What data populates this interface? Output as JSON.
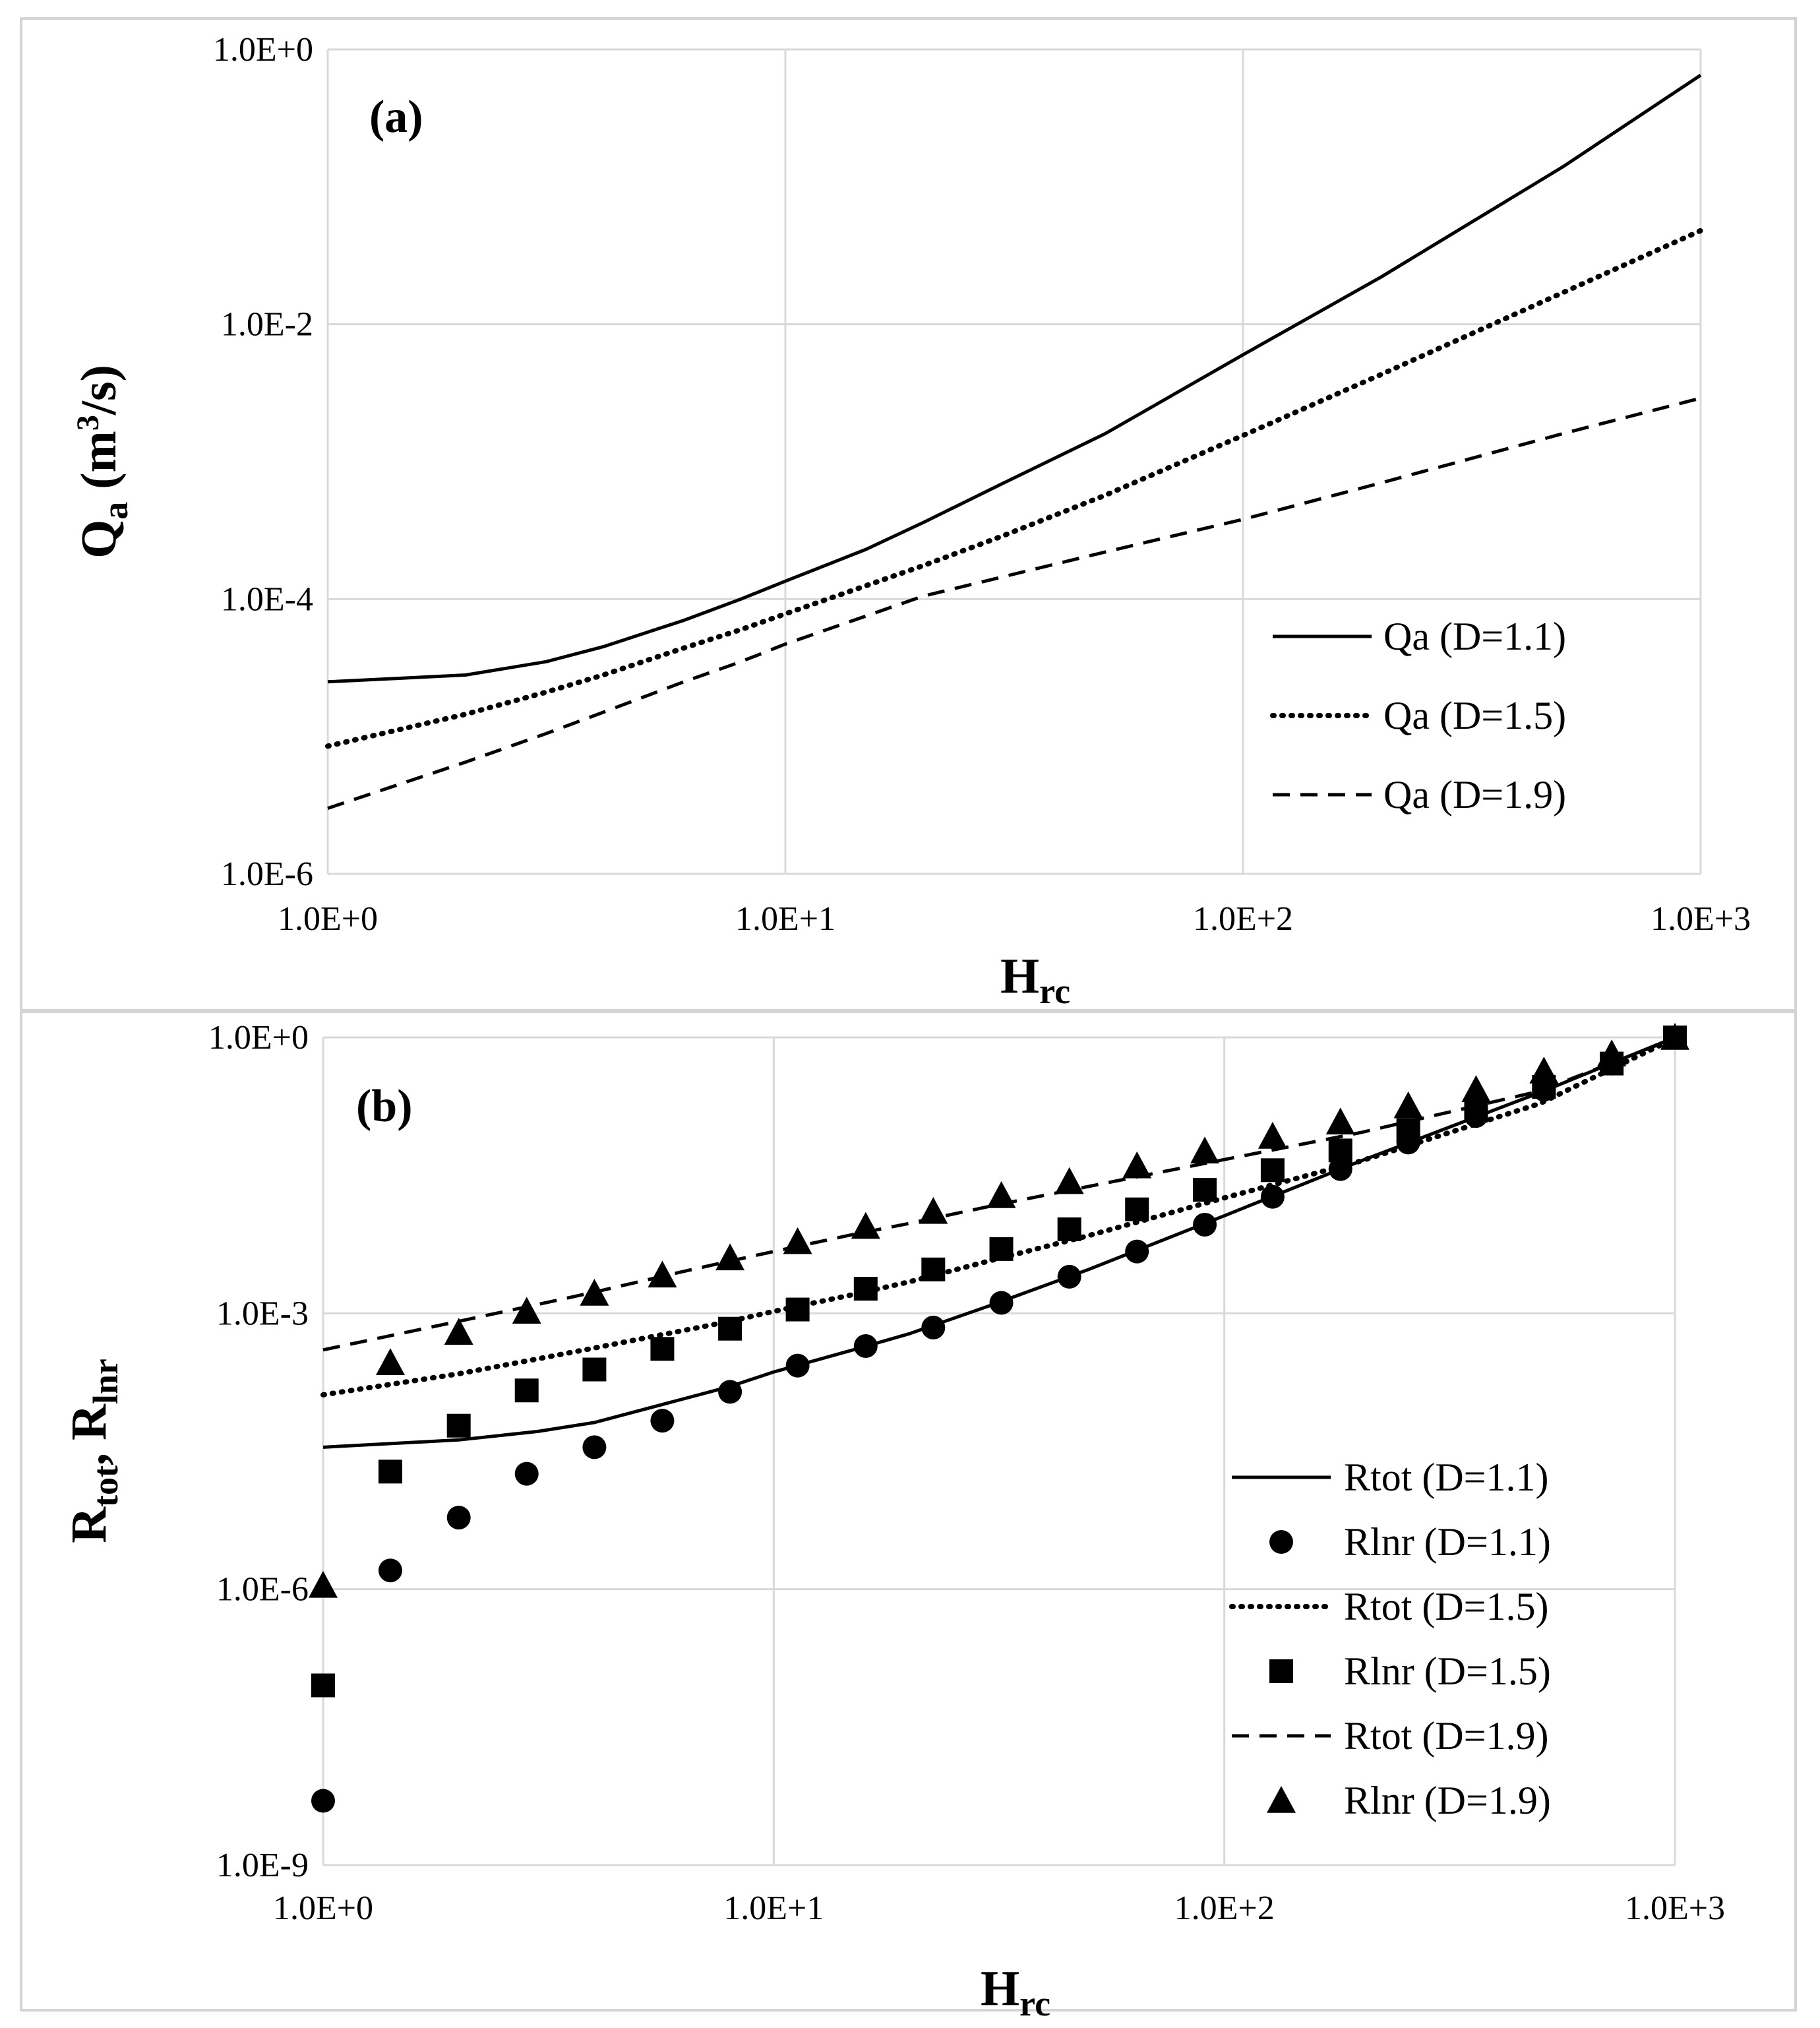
{
  "chart_data": [
    {
      "type": "line",
      "panel_label": "(a)",
      "xscale": "log",
      "yscale": "log",
      "xlim": [
        1,
        1000
      ],
      "ylim": [
        1e-06,
        1
      ],
      "x_ticks": [
        {
          "value": 1,
          "label": "1.0E+0"
        },
        {
          "value": 10,
          "label": "1.0E+1"
        },
        {
          "value": 100,
          "label": "1.0E+2"
        },
        {
          "value": 1000,
          "label": "1.0E+3"
        }
      ],
      "y_ticks": [
        {
          "value": 1e-06,
          "label": "1.0E-6"
        },
        {
          "value": 0.0001,
          "label": "1.0E-4"
        },
        {
          "value": 0.01,
          "label": "1.0E-2"
        },
        {
          "value": 1,
          "label": "1.0E+0"
        }
      ],
      "xlabel": {
        "main": "H",
        "sub": "rc"
      },
      "ylabel": {
        "main": "Q",
        "sub": "a",
        "rest": " (m",
        "sup": "3",
        "end": "/s)"
      },
      "grid": true,
      "legend_position": "bottom-right",
      "series": [
        {
          "name": "Qa (D=1.1)",
          "style": "solid",
          "x": [
            1,
            2,
            3,
            4,
            6,
            8,
            10,
            15,
            20,
            30,
            50,
            100,
            200,
            500,
            1000
          ],
          "y": [
            2.5e-05,
            2.8e-05,
            3.5e-05,
            4.5e-05,
            7e-05,
            0.0001,
            0.000135,
            0.00023,
            0.00036,
            0.0007,
            0.0016,
            0.006,
            0.022,
            0.14,
            0.65
          ]
        },
        {
          "name": "Qa (D=1.5)",
          "style": "dotted",
          "x": [
            1,
            2,
            3,
            4,
            6,
            8,
            10,
            15,
            20,
            30,
            50,
            100,
            200,
            500,
            1000
          ],
          "y": [
            8.5e-06,
            1.45e-05,
            2.1e-05,
            2.8e-05,
            4.4e-05,
            6e-05,
            7.8e-05,
            0.000125,
            0.000175,
            0.00029,
            0.00057,
            0.00155,
            0.0043,
            0.017,
            0.048
          ]
        },
        {
          "name": "Qa (D=1.9)",
          "style": "dashed",
          "x": [
            1,
            2,
            3,
            4,
            6,
            8,
            10,
            20,
            50,
            100,
            200,
            500,
            1000
          ],
          "y": [
            3e-06,
            6.5e-06,
            1.05e-05,
            1.5e-05,
            2.5e-05,
            3.5e-05,
            4.7e-05,
            0.000105,
            0.00022,
            0.00038,
            0.0007,
            0.0016,
            0.0029
          ]
        }
      ]
    },
    {
      "type": "scatter",
      "panel_label": "(b)",
      "xscale": "log",
      "yscale": "log",
      "xlim": [
        1,
        1000
      ],
      "ylim": [
        1e-09,
        1
      ],
      "x_ticks": [
        {
          "value": 1,
          "label": "1.0E+0"
        },
        {
          "value": 10,
          "label": "1.0E+1"
        },
        {
          "value": 100,
          "label": "1.0E+2"
        },
        {
          "value": 1000,
          "label": "1.0E+3"
        }
      ],
      "y_ticks": [
        {
          "value": 1e-09,
          "label": "1.0E-9"
        },
        {
          "value": 1e-06,
          "label": "1.0E-6"
        },
        {
          "value": 0.001,
          "label": "1.0E-3"
        },
        {
          "value": 1,
          "label": "1.0E+0"
        }
      ],
      "xlabel": {
        "main": "H",
        "sub": "rc"
      },
      "ylabel": {
        "main": "R",
        "sub": "tot",
        "rest": ", R",
        "sub2": "lnr"
      },
      "grid": true,
      "legend_position": "bottom-right",
      "series": [
        {
          "name": "Rtot (D=1.1)",
          "style": "solid",
          "x": [
            1,
            2,
            3,
            4,
            6,
            8,
            10,
            15,
            20,
            30,
            50,
            100,
            200,
            500,
            1000
          ],
          "y": [
            3.5e-05,
            4.2e-05,
            5.2e-05,
            6.5e-05,
            0.00011,
            0.00016,
            0.00023,
            0.0004,
            0.0006,
            0.0012,
            0.003,
            0.0115,
            0.045,
            0.25,
            1.0
          ]
        },
        {
          "name": "Rlnr (D=1.1)",
          "style": "circle",
          "x": [
            1,
            1.41,
            2,
            2.83,
            4,
            5.66,
            8,
            11.3,
            16,
            22.6,
            32,
            45.3,
            64,
            90.5,
            128,
            181,
            256,
            362,
            512,
            724,
            1000
          ],
          "y": [
            5e-09,
            1.6e-06,
            6e-06,
            1.8e-05,
            3.5e-05,
            6.8e-05,
            0.00014,
            0.00027,
            0.00044,
            0.0007,
            0.0013,
            0.0025,
            0.0047,
            0.0092,
            0.0185,
            0.037,
            0.072,
            0.14,
            0.27,
            0.52,
            1.0
          ]
        },
        {
          "name": "Rtot (D=1.5)",
          "style": "dotted",
          "x": [
            1,
            2,
            3,
            4,
            6,
            8,
            10,
            15,
            20,
            30,
            50,
            100,
            200,
            500,
            1000
          ],
          "y": [
            0.00013,
            0.00022,
            0.00032,
            0.00042,
            0.00062,
            0.00082,
            0.00105,
            0.0016,
            0.0022,
            0.0037,
            0.007,
            0.018,
            0.045,
            0.19,
            0.98
          ]
        },
        {
          "name": "Rlnr (D=1.5)",
          "style": "square",
          "x": [
            1,
            1.41,
            2,
            2.83,
            4,
            5.66,
            8,
            11.3,
            16,
            22.6,
            32,
            45.3,
            64,
            90.5,
            128,
            181,
            256,
            362,
            512,
            724,
            1000
          ],
          "y": [
            9e-08,
            1.9e-05,
            6e-05,
            0.000145,
            0.000245,
            0.00041,
            0.00068,
            0.0011,
            0.00185,
            0.003,
            0.005,
            0.0082,
            0.0135,
            0.022,
            0.036,
            0.059,
            0.098,
            0.16,
            0.29,
            0.52,
            1.0
          ]
        },
        {
          "name": "Rtot (D=1.9)",
          "style": "dashed",
          "x": [
            1,
            2,
            3,
            4,
            6,
            8,
            10,
            15,
            20,
            30,
            50,
            100,
            200,
            500,
            1000
          ],
          "y": [
            0.0004,
            0.00082,
            0.00125,
            0.0017,
            0.0027,
            0.0037,
            0.0047,
            0.0072,
            0.0095,
            0.0145,
            0.024,
            0.047,
            0.092,
            0.26,
            0.98
          ]
        },
        {
          "name": "Rlnr (D=1.9)",
          "style": "triangle",
          "x": [
            1,
            1.41,
            2,
            2.83,
            4,
            5.66,
            8,
            11.3,
            16,
            22.6,
            32,
            45.3,
            64,
            90.5,
            128,
            181,
            256,
            362,
            512,
            724,
            1000
          ],
          "y": [
            1.1e-06,
            0.00029,
            0.00062,
            0.00105,
            0.00165,
            0.0026,
            0.004,
            0.006,
            0.0088,
            0.0128,
            0.019,
            0.027,
            0.04,
            0.058,
            0.084,
            0.12,
            0.18,
            0.27,
            0.43,
            0.66,
            1.0
          ]
        }
      ]
    }
  ]
}
